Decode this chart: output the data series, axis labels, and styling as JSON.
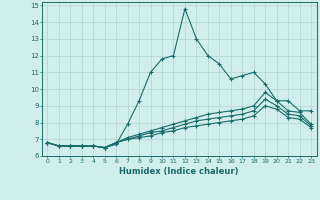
{
  "xlabel": "Humidex (Indice chaleur)",
  "bg_color": "#d0eeec",
  "grid_color": "#b8d8d6",
  "line_color": "#1a6b6b",
  "xlim": [
    -0.5,
    23.5
  ],
  "ylim": [
    6,
    15.2
  ],
  "xticks": [
    0,
    1,
    2,
    3,
    4,
    5,
    6,
    7,
    8,
    9,
    10,
    11,
    12,
    13,
    14,
    15,
    16,
    17,
    18,
    19,
    20,
    21,
    22,
    23
  ],
  "yticks": [
    6,
    7,
    8,
    9,
    10,
    11,
    12,
    13,
    14,
    15
  ],
  "series1_x": [
    0,
    1,
    2,
    3,
    4,
    5,
    6,
    7,
    8,
    9,
    10,
    11,
    12,
    13,
    14,
    15,
    16,
    17,
    18,
    19,
    20,
    21,
    22,
    23
  ],
  "series1_y": [
    6.8,
    6.6,
    6.6,
    6.6,
    6.6,
    6.5,
    6.7,
    7.9,
    9.3,
    11.0,
    11.8,
    12.0,
    14.8,
    13.0,
    12.0,
    11.5,
    10.6,
    10.8,
    11.0,
    10.3,
    9.3,
    9.3,
    8.7,
    8.7
  ],
  "series2_x": [
    0,
    1,
    2,
    3,
    4,
    5,
    6,
    7,
    8,
    9,
    10,
    11,
    12,
    13,
    14,
    15,
    16,
    17,
    18,
    19,
    20,
    21,
    22,
    23
  ],
  "series2_y": [
    6.8,
    6.6,
    6.6,
    6.6,
    6.6,
    6.5,
    6.8,
    7.1,
    7.3,
    7.5,
    7.7,
    7.9,
    8.1,
    8.3,
    8.5,
    8.6,
    8.7,
    8.8,
    9.0,
    9.8,
    9.3,
    8.7,
    8.6,
    7.9
  ],
  "series3_x": [
    0,
    1,
    2,
    3,
    4,
    5,
    6,
    7,
    8,
    9,
    10,
    11,
    12,
    13,
    14,
    15,
    16,
    17,
    18,
    19,
    20,
    21,
    22,
    23
  ],
  "series3_y": [
    6.8,
    6.6,
    6.6,
    6.6,
    6.6,
    6.5,
    6.8,
    7.0,
    7.2,
    7.4,
    7.5,
    7.7,
    7.9,
    8.1,
    8.2,
    8.3,
    8.4,
    8.5,
    8.7,
    9.4,
    9.0,
    8.5,
    8.4,
    7.8
  ],
  "series4_x": [
    0,
    1,
    2,
    3,
    4,
    5,
    6,
    7,
    8,
    9,
    10,
    11,
    12,
    13,
    14,
    15,
    16,
    17,
    18,
    19,
    20,
    21,
    22,
    23
  ],
  "series4_y": [
    6.8,
    6.6,
    6.6,
    6.6,
    6.6,
    6.5,
    6.8,
    7.0,
    7.1,
    7.2,
    7.4,
    7.5,
    7.7,
    7.8,
    7.9,
    8.0,
    8.1,
    8.2,
    8.4,
    9.0,
    8.8,
    8.3,
    8.2,
    7.7
  ]
}
